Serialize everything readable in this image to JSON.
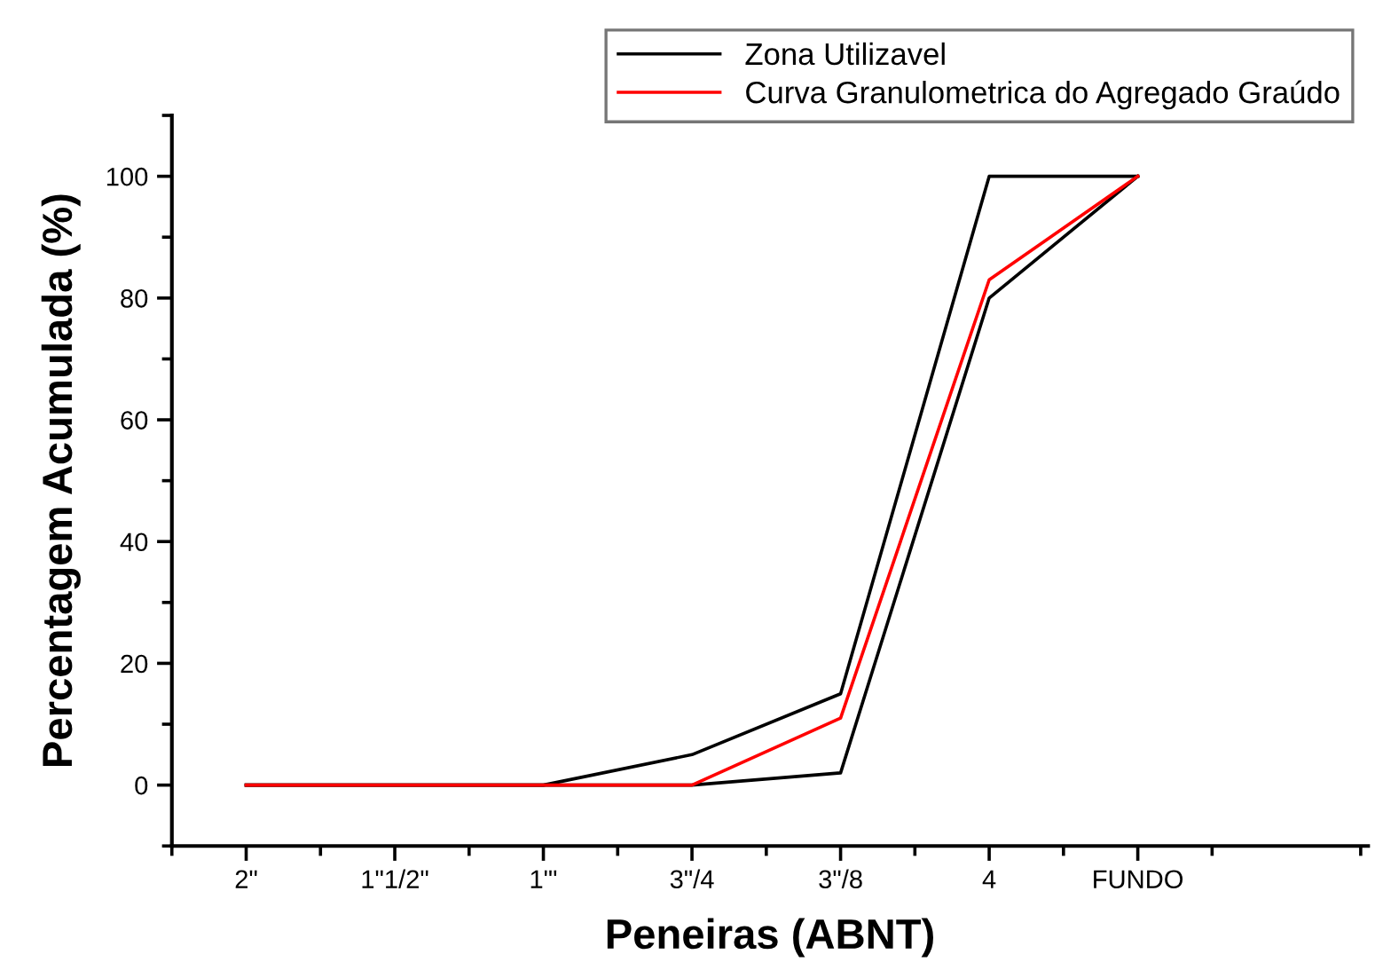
{
  "chart_data": {
    "type": "line",
    "xlabel": "Peneiras (ABNT)",
    "ylabel": "Percentagem Acumulada (%)",
    "categories": [
      "2\"",
      "1\"1/2\"",
      "1\"'",
      "3\"/4",
      "3\"/8",
      "4",
      "FUNDO"
    ],
    "series": [
      {
        "name": "Zona Utilizavel",
        "color": "#000000",
        "values": [
          0,
          0,
          0,
          5,
          15,
          100,
          100
        ]
      },
      {
        "color": "#000000",
        "values": [
          0,
          0,
          0,
          0,
          2,
          80,
          100
        ]
      },
      {
        "name": "Curva Granulometrica do Agregado Graúdo",
        "color": "#ff0000",
        "values": [
          0,
          0,
          0,
          0,
          11,
          83,
          100
        ]
      }
    ],
    "ylim": [
      -10,
      110
    ],
    "yticks": [
      0,
      20,
      40,
      60,
      80,
      100
    ],
    "grid": false,
    "legend": "top right",
    "marker": "none",
    "line_style": "solid"
  }
}
